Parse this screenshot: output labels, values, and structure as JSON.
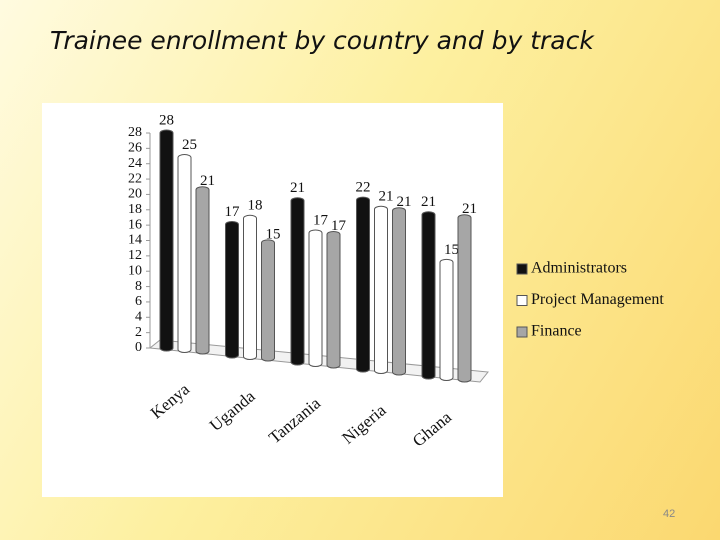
{
  "slide": {
    "title": "Trainee enrollment by country and by track",
    "page_number": "42"
  },
  "chart_data": {
    "type": "bar",
    "categories": [
      "Kenya",
      "Uganda",
      "Tanzania",
      "Nigeria",
      "Ghana"
    ],
    "series": [
      {
        "name": "Administrators",
        "color": "#111111",
        "values": [
          28,
          17,
          21,
          22,
          21
        ]
      },
      {
        "name": "Project Management",
        "color": "#ffffff",
        "values": [
          25,
          18,
          17,
          21,
          15
        ]
      },
      {
        "name": "Finance",
        "color": "#a6a6a6",
        "values": [
          21,
          15,
          17,
          21,
          21
        ]
      }
    ],
    "ylim": [
      0,
      28
    ],
    "yticks": [
      0,
      2,
      4,
      6,
      8,
      10,
      12,
      14,
      16,
      18,
      20,
      22,
      24,
      26,
      28
    ],
    "legend": "right"
  }
}
